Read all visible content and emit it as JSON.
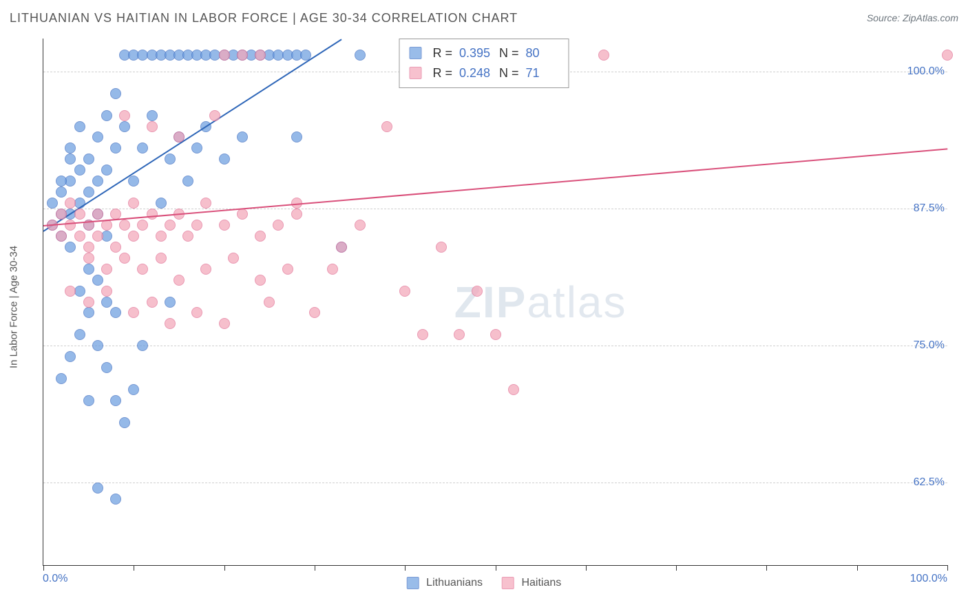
{
  "title": "LITHUANIAN VS HAITIAN IN LABOR FORCE | AGE 30-34 CORRELATION CHART",
  "source": "Source: ZipAtlas.com",
  "watermark_bold": "ZIP",
  "watermark_light": "atlas",
  "chart": {
    "type": "scatter",
    "background_color": "#ffffff",
    "grid_color": "#cfcfcf",
    "axis_color": "#333333",
    "xlim": [
      0,
      100
    ],
    "ylim": [
      55,
      103
    ],
    "xtick_positions": [
      0,
      10,
      20,
      30,
      40,
      50,
      60,
      70,
      80,
      90,
      100
    ],
    "xtick_labels_shown": {
      "0": "0.0%",
      "100": "100.0%"
    },
    "ytick_positions": [
      62.5,
      75.0,
      87.5,
      100.0
    ],
    "ytick_labels": [
      "62.5%",
      "75.0%",
      "87.5%",
      "100.0%"
    ],
    "y_axis_title": "In Labor Force | Age 30-34",
    "y_axis_title_fontsize": 15,
    "tick_label_color": "#4472c4",
    "tick_label_fontsize": 16,
    "marker_radius": 8,
    "marker_fill_opacity": 0.28,
    "marker_stroke_width": 1.2,
    "line_width": 2,
    "series": [
      {
        "name": "Lithuanians",
        "color": "#6fa0e0",
        "stroke": "#4472c4",
        "trend_color": "#2e66b8",
        "r": "0.395",
        "n": "80",
        "trend": {
          "x1": 0,
          "y1": 85.5,
          "x2": 33,
          "y2": 103
        },
        "points": [
          [
            1,
            86
          ],
          [
            1,
            88
          ],
          [
            2,
            87
          ],
          [
            2,
            89
          ],
          [
            2,
            85
          ],
          [
            3,
            90
          ],
          [
            3,
            87
          ],
          [
            3,
            84
          ],
          [
            3,
            93
          ],
          [
            4,
            88
          ],
          [
            4,
            91
          ],
          [
            4,
            95
          ],
          [
            5,
            86
          ],
          [
            5,
            89
          ],
          [
            5,
            92
          ],
          [
            5,
            82
          ],
          [
            6,
            90
          ],
          [
            6,
            94
          ],
          [
            6,
            87
          ],
          [
            7,
            96
          ],
          [
            7,
            91
          ],
          [
            7,
            85
          ],
          [
            8,
            93
          ],
          [
            8,
            98
          ],
          [
            8,
            78
          ],
          [
            9,
            95
          ],
          [
            9,
            101.5
          ],
          [
            10,
            90
          ],
          [
            10,
            101.5
          ],
          [
            11,
            93
          ],
          [
            11,
            101.5
          ],
          [
            12,
            96
          ],
          [
            12,
            101.5
          ],
          [
            13,
            88
          ],
          [
            13,
            101.5
          ],
          [
            14,
            92
          ],
          [
            14,
            101.5
          ],
          [
            14,
            79
          ],
          [
            15,
            94
          ],
          [
            15,
            101.5
          ],
          [
            16,
            90
          ],
          [
            16,
            101.5
          ],
          [
            17,
            93
          ],
          [
            17,
            101.5
          ],
          [
            18,
            95
          ],
          [
            18,
            101.5
          ],
          [
            19,
            101.5
          ],
          [
            20,
            92
          ],
          [
            20,
            101.5
          ],
          [
            21,
            101.5
          ],
          [
            22,
            94
          ],
          [
            22,
            101.5
          ],
          [
            23,
            101.5
          ],
          [
            24,
            101.5
          ],
          [
            25,
            101.5
          ],
          [
            26,
            101.5
          ],
          [
            27,
            101.5
          ],
          [
            28,
            94
          ],
          [
            28,
            101.5
          ],
          [
            29,
            101.5
          ],
          [
            35,
            101.5
          ],
          [
            2,
            72
          ],
          [
            3,
            74
          ],
          [
            4,
            76
          ],
          [
            5,
            70
          ],
          [
            6,
            75
          ],
          [
            7,
            73
          ],
          [
            8,
            70
          ],
          [
            9,
            68
          ],
          [
            10,
            71
          ],
          [
            11,
            75
          ],
          [
            6,
            62
          ],
          [
            8,
            61
          ],
          [
            4,
            80
          ],
          [
            5,
            78
          ],
          [
            6,
            81
          ],
          [
            7,
            79
          ],
          [
            2,
            90
          ],
          [
            3,
            92
          ],
          [
            33,
            84
          ]
        ]
      },
      {
        "name": "Haitians",
        "color": "#f4a8ba",
        "stroke": "#e27396",
        "trend_color": "#d94f7a",
        "r": "0.248",
        "n": "71",
        "trend": {
          "x1": 0,
          "y1": 86,
          "x2": 100,
          "y2": 93
        },
        "points": [
          [
            1,
            86
          ],
          [
            2,
            87
          ],
          [
            2,
            85
          ],
          [
            3,
            86
          ],
          [
            3,
            88
          ],
          [
            4,
            85
          ],
          [
            4,
            87
          ],
          [
            5,
            86
          ],
          [
            5,
            84
          ],
          [
            6,
            87
          ],
          [
            6,
            85
          ],
          [
            7,
            86
          ],
          [
            8,
            87
          ],
          [
            8,
            84
          ],
          [
            9,
            86
          ],
          [
            10,
            85
          ],
          [
            10,
            88
          ],
          [
            11,
            86
          ],
          [
            12,
            87
          ],
          [
            13,
            85
          ],
          [
            14,
            86
          ],
          [
            15,
            87
          ],
          [
            16,
            85
          ],
          [
            17,
            86
          ],
          [
            18,
            88
          ],
          [
            20,
            86
          ],
          [
            22,
            87
          ],
          [
            24,
            85
          ],
          [
            26,
            86
          ],
          [
            28,
            88
          ],
          [
            5,
            83
          ],
          [
            7,
            82
          ],
          [
            9,
            83
          ],
          [
            11,
            82
          ],
          [
            13,
            83
          ],
          [
            15,
            81
          ],
          [
            18,
            82
          ],
          [
            21,
            83
          ],
          [
            24,
            81
          ],
          [
            27,
            82
          ],
          [
            9,
            96
          ],
          [
            12,
            95
          ],
          [
            15,
            94
          ],
          [
            19,
            96
          ],
          [
            20,
            101.5
          ],
          [
            22,
            101.5
          ],
          [
            24,
            101.5
          ],
          [
            28,
            87
          ],
          [
            32,
            82
          ],
          [
            35,
            86
          ],
          [
            38,
            95
          ],
          [
            40,
            80
          ],
          [
            42,
            76
          ],
          [
            44,
            84
          ],
          [
            46,
            76
          ],
          [
            48,
            80
          ],
          [
            50,
            76
          ],
          [
            52,
            71
          ],
          [
            62,
            101.5
          ],
          [
            100,
            101.5
          ],
          [
            3,
            80
          ],
          [
            5,
            79
          ],
          [
            7,
            80
          ],
          [
            10,
            78
          ],
          [
            12,
            79
          ],
          [
            14,
            77
          ],
          [
            17,
            78
          ],
          [
            20,
            77
          ],
          [
            25,
            79
          ],
          [
            30,
            78
          ],
          [
            33,
            84
          ]
        ]
      }
    ],
    "legend": {
      "series1_label": "Lithuanians",
      "series2_label": "Haitians"
    },
    "stats_box": {
      "r_label": "R =",
      "n_label": "N ="
    }
  }
}
